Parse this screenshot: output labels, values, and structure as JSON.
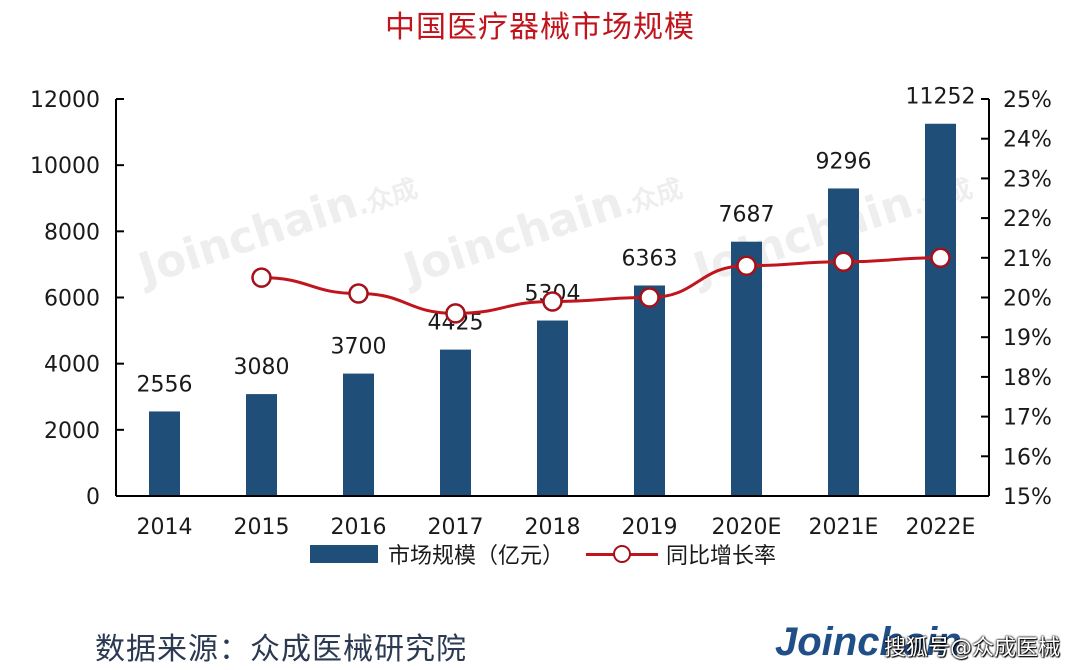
{
  "title": "中国医疗器械市场规模",
  "legend": {
    "bar_label": "市场规模（亿元）",
    "line_label": "同比增长率"
  },
  "footer": {
    "source": "数据来源：众成医械研究院",
    "brand": "Joinchain",
    "watermark_overlay": "搜狐号@众成医械"
  },
  "watermark": {
    "text": "Joinchain",
    "suffix": "众成"
  },
  "colors": {
    "bar": "#1f4e79",
    "line": "#c0151c",
    "title": "#c0151c",
    "axis": "#000000"
  },
  "chart_data": {
    "type": "bar",
    "title": "中国医疗器械市场规模",
    "categories": [
      "2014",
      "2015",
      "2016",
      "2017",
      "2018",
      "2019",
      "2020E",
      "2021E",
      "2022E"
    ],
    "series": [
      {
        "name": "市场规模（亿元）",
        "type": "bar",
        "axis": "left",
        "values": [
          2556,
          3080,
          3700,
          4425,
          5304,
          6363,
          7687,
          9296,
          11252
        ]
      },
      {
        "name": "同比增长率",
        "type": "line",
        "axis": "right",
        "unit": "%",
        "values": [
          null,
          20.5,
          20.1,
          19.6,
          19.9,
          20.0,
          20.8,
          20.9,
          21.0
        ]
      }
    ],
    "xlabel": "",
    "ylabel": "",
    "ylim": [
      0,
      12000
    ],
    "yticks": [
      0,
      2000,
      4000,
      6000,
      8000,
      10000,
      12000
    ],
    "y2lim": [
      15,
      25
    ],
    "y2ticks": [
      "15%",
      "16%",
      "17%",
      "18%",
      "19%",
      "20%",
      "21%",
      "22%",
      "23%",
      "24%",
      "25%"
    ],
    "grid": false,
    "legend_position": "bottom"
  }
}
